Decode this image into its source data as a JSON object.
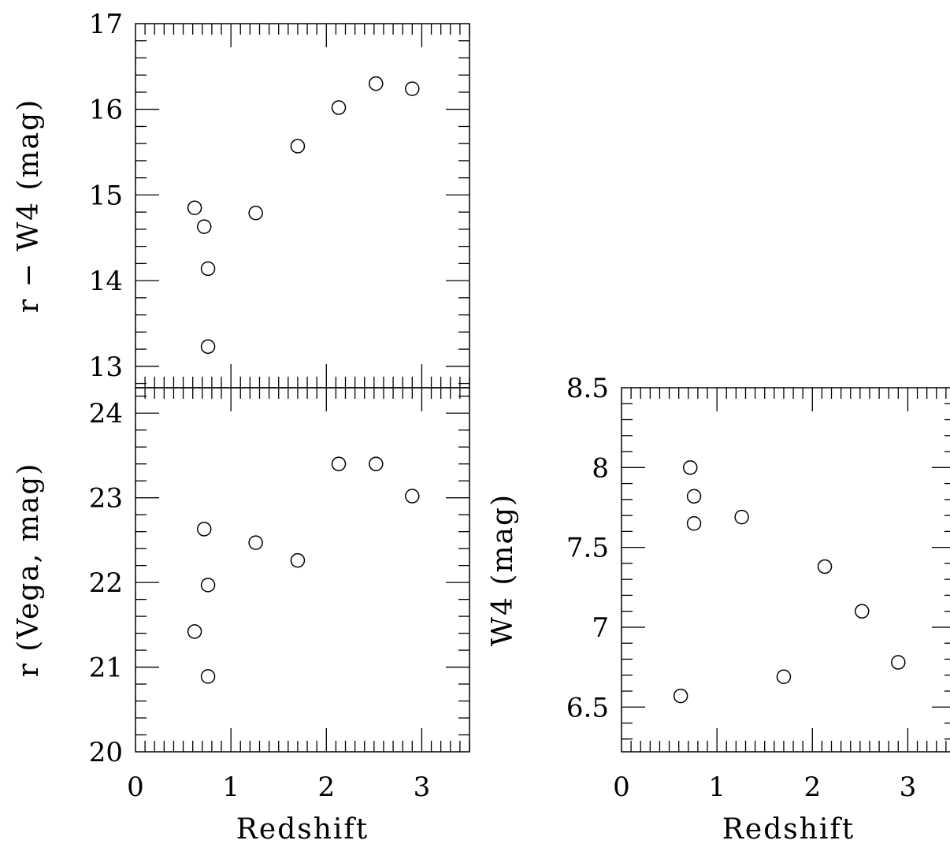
{
  "chart_data": [
    {
      "type": "scatter",
      "id": "top-left",
      "xlabel": "",
      "ylabel": "r − W4 (mag)",
      "xlim": [
        0,
        3.5
      ],
      "ylim": [
        12.75,
        17
      ],
      "xticks_labeled": [],
      "yticks_labeled": [
        "13",
        "14",
        "15",
        "16",
        "17"
      ],
      "marker": "open-circle",
      "points": [
        {
          "x": 0.62,
          "y": 14.85
        },
        {
          "x": 0.72,
          "y": 14.63
        },
        {
          "x": 0.76,
          "y": 14.14
        },
        {
          "x": 0.76,
          "y": 13.23
        },
        {
          "x": 1.26,
          "y": 14.79
        },
        {
          "x": 1.7,
          "y": 15.57
        },
        {
          "x": 2.13,
          "y": 16.02
        },
        {
          "x": 2.52,
          "y": 16.3
        },
        {
          "x": 2.9,
          "y": 16.24
        }
      ]
    },
    {
      "type": "scatter",
      "id": "bottom-left",
      "xlabel": "Redshift",
      "ylabel": "r (Vega, mag)",
      "xlim": [
        0,
        3.5
      ],
      "ylim": [
        20,
        24.3
      ],
      "xticks_labeled": [
        "0",
        "1",
        "2",
        "3"
      ],
      "yticks_labeled": [
        "20",
        "21",
        "22",
        "23",
        "24"
      ],
      "marker": "open-circle",
      "points": [
        {
          "x": 0.62,
          "y": 21.42
        },
        {
          "x": 0.72,
          "y": 22.63
        },
        {
          "x": 0.76,
          "y": 21.97
        },
        {
          "x": 0.76,
          "y": 20.89
        },
        {
          "x": 1.26,
          "y": 22.47
        },
        {
          "x": 1.7,
          "y": 22.26
        },
        {
          "x": 2.13,
          "y": 23.4
        },
        {
          "x": 2.52,
          "y": 23.4
        },
        {
          "x": 2.9,
          "y": 23.02
        }
      ]
    },
    {
      "type": "scatter",
      "id": "right",
      "xlabel": "Redshift",
      "ylabel": "W4 (mag)",
      "xlim": [
        0,
        3.5
      ],
      "ylim": [
        6.22,
        8.5
      ],
      "xticks_labeled": [
        "0",
        "1",
        "2",
        "3"
      ],
      "yticks_labeled": [
        "6.5",
        "7",
        "7.5",
        "8",
        "8.5"
      ],
      "marker": "open-circle",
      "points": [
        {
          "x": 0.62,
          "y": 6.57
        },
        {
          "x": 0.72,
          "y": 8.0
        },
        {
          "x": 0.76,
          "y": 7.82
        },
        {
          "x": 0.76,
          "y": 7.65
        },
        {
          "x": 1.26,
          "y": 7.69
        },
        {
          "x": 1.7,
          "y": 6.69
        },
        {
          "x": 2.13,
          "y": 7.38
        },
        {
          "x": 2.52,
          "y": 7.1
        },
        {
          "x": 2.9,
          "y": 6.78
        }
      ]
    }
  ]
}
